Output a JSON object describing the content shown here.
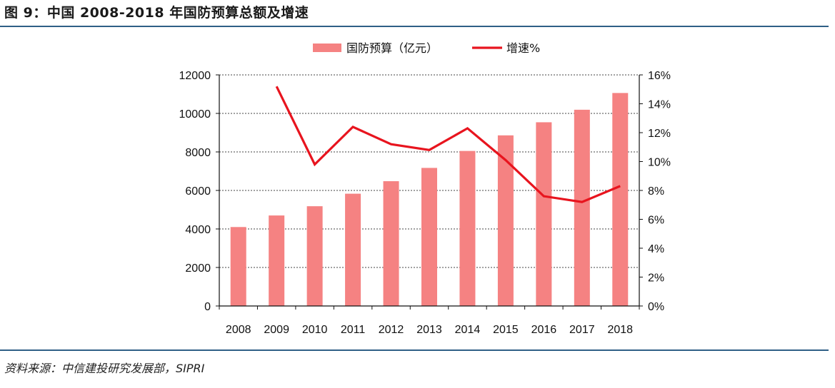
{
  "header": {
    "title": "图 9：中国 2008-2018 年国防预算总额及增速"
  },
  "footer": {
    "source": "资料来源：中信建投研究发展部，SIPRI"
  },
  "chart_data": {
    "type": "bar",
    "title": "",
    "categories": [
      "2008",
      "2009",
      "2010",
      "2011",
      "2012",
      "2013",
      "2014",
      "2015",
      "2016",
      "2017",
      "2018"
    ],
    "series": [
      {
        "name": "国防预算（亿元）",
        "type": "bar",
        "axis": "left",
        "color": "#f58282",
        "values": [
          4100,
          4700,
          5180,
          5830,
          6480,
          7170,
          8050,
          8860,
          9540,
          10190,
          11060
        ]
      },
      {
        "name": "增速%",
        "type": "line",
        "axis": "right",
        "color": "#e8141e",
        "values": [
          null,
          15.2,
          9.8,
          12.4,
          11.2,
          10.8,
          12.3,
          10.1,
          7.6,
          7.2,
          8.3
        ]
      }
    ],
    "y_left": {
      "min": 0,
      "max": 12000,
      "ticks": [
        "0",
        "2000",
        "4000",
        "6000",
        "8000",
        "10000",
        "12000"
      ]
    },
    "y_right": {
      "min": 0,
      "max": 16,
      "ticks": [
        "0%",
        "2%",
        "4%",
        "6%",
        "8%",
        "10%",
        "12%",
        "14%",
        "16%"
      ]
    },
    "grid": "dashed horizontal",
    "legend_position": "top-center"
  }
}
